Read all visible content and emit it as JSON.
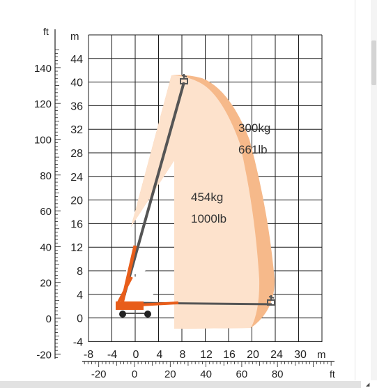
{
  "diagram": {
    "unit_ft": "ft",
    "unit_m": "m",
    "unit_m_bottom": "m",
    "unit_ft_bottom": "ft",
    "y_ft_ticks": [
      "140",
      "120",
      "100",
      "80",
      "60",
      "40",
      "20",
      "0",
      "-20"
    ],
    "y_m_ticks": [
      "44",
      "40",
      "36",
      "32",
      "28",
      "24",
      "20",
      "16",
      "12",
      "8",
      "4",
      "0",
      "-4"
    ],
    "x_m_ticks": [
      "-8",
      "-4",
      "0",
      "4",
      "8",
      "12",
      "16",
      "20",
      "24",
      "30"
    ],
    "x_ft_ticks": [
      "-20",
      "0",
      "20",
      "40",
      "60",
      "80"
    ],
    "capacity_inner": {
      "kg": "454kg",
      "lb": "1000lb"
    },
    "capacity_outer": {
      "kg": "300kg",
      "lb": "661lb"
    },
    "colors": {
      "grid": "#1a1a1a",
      "outer_zone": "#f6b98a",
      "inner_zone": "#fde2cc",
      "boom": "#555555",
      "boom_base": "#e85d1a",
      "machine": "#e85d1a",
      "wheels": "#222222"
    }
  }
}
